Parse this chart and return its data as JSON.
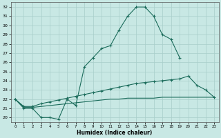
{
  "xlabel": "Humidex (Indice chaleur)",
  "xlim_min": -0.5,
  "xlim_max": 23.5,
  "ylim_min": 19.5,
  "ylim_max": 32.5,
  "xticks": [
    0,
    1,
    2,
    3,
    4,
    5,
    6,
    7,
    8,
    9,
    10,
    11,
    12,
    13,
    14,
    15,
    16,
    17,
    18,
    19,
    20,
    21,
    22,
    23
  ],
  "yticks": [
    20,
    21,
    22,
    23,
    24,
    25,
    26,
    27,
    28,
    29,
    30,
    31,
    32
  ],
  "bg_color": "#c8e8e4",
  "grid_color": "#a8ceca",
  "line_color": "#1a6b5a",
  "curve1_x": [
    0,
    1,
    2,
    3,
    4,
    5,
    6,
    7,
    8,
    9,
    10,
    11,
    12,
    13,
    14,
    15,
    16,
    17,
    18,
    19
  ],
  "curve1_y": [
    22,
    21,
    21,
    20,
    20,
    19.8,
    22,
    21.3,
    25.5,
    26.5,
    27.5,
    27.8,
    29.5,
    31,
    32,
    32,
    31,
    29,
    28.5,
    26.5
  ],
  "curve2_x": [
    0,
    1,
    2,
    3,
    4,
    5,
    6,
    7,
    8,
    9,
    10,
    11,
    12,
    13,
    14,
    15,
    16,
    17,
    18,
    19,
    20,
    21,
    22,
    23
  ],
  "curve2_y": [
    22,
    21.2,
    21.2,
    21.5,
    21.7,
    21.9,
    22.1,
    22.3,
    22.5,
    22.7,
    22.9,
    23.1,
    23.3,
    23.5,
    23.7,
    23.8,
    23.9,
    24.0,
    24.1,
    24.2,
    24.5,
    23.5,
    23.0,
    22.2
  ],
  "curve3_x": [
    0,
    1,
    2,
    3,
    4,
    5,
    6,
    7,
    8,
    9,
    10,
    11,
    12,
    13,
    14,
    15,
    16,
    17,
    18,
    19,
    20,
    21,
    22,
    23
  ],
  "curve3_y": [
    22,
    21.1,
    21.1,
    21.2,
    21.3,
    21.4,
    21.5,
    21.6,
    21.7,
    21.8,
    21.9,
    22.0,
    22.0,
    22.1,
    22.1,
    22.1,
    22.1,
    22.2,
    22.2,
    22.2,
    22.2,
    22.2,
    22.2,
    22.2
  ]
}
